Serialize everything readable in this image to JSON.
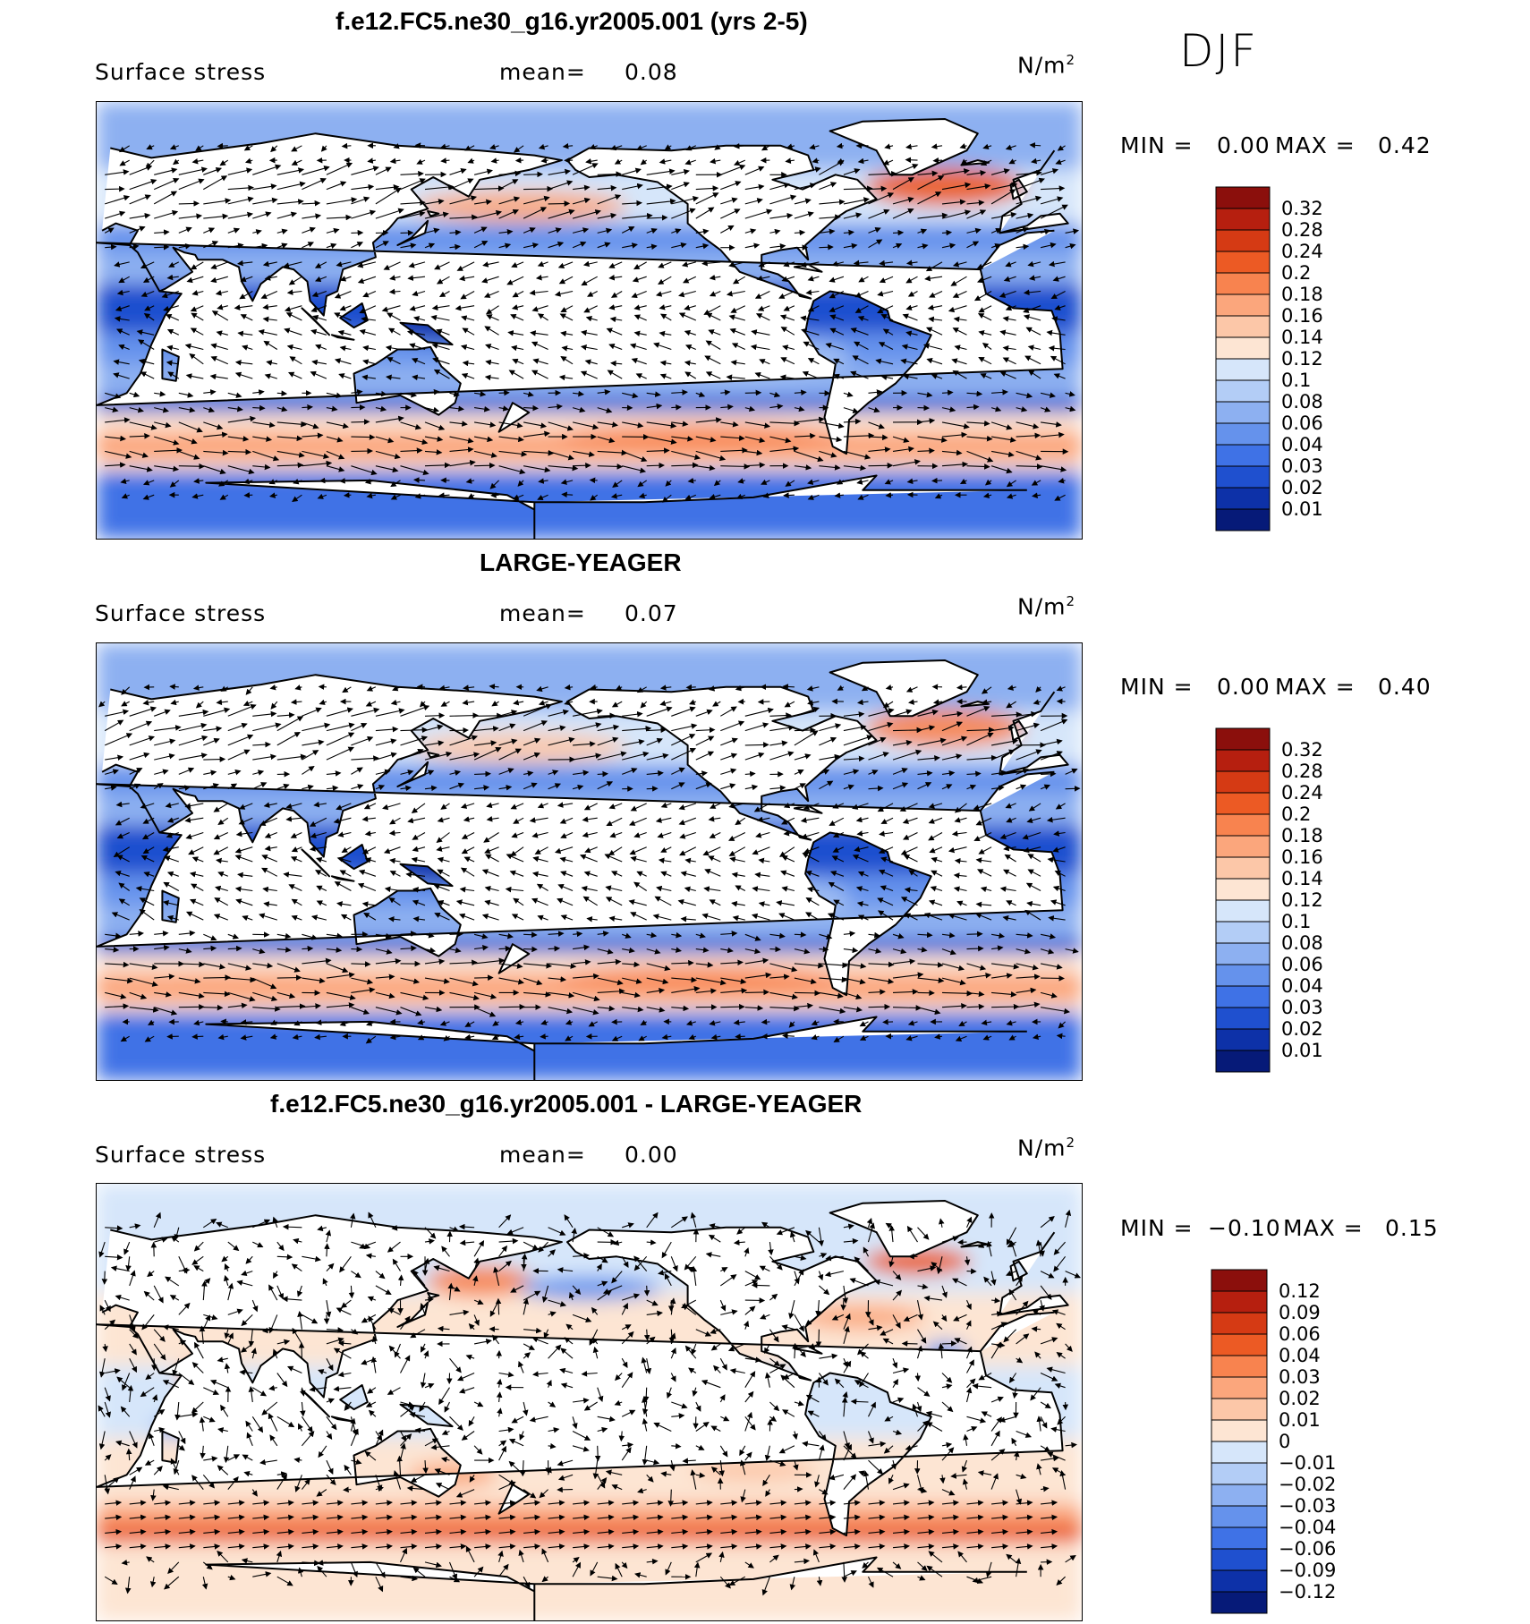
{
  "season": "DJF",
  "panels": [
    {
      "title": "f.e12.FC5.ne30_g16.yr2005.001 (yrs 2-5)",
      "variable": "Surface stress",
      "mean_label": "mean=",
      "mean_value": "0.08",
      "units_base": "N/m",
      "units_exp": "2",
      "min_label": "MIN =",
      "min_value": "0.00",
      "max_label": "MAX =",
      "max_value": "0.42",
      "colorbar_labels": [
        "0.32",
        "0.28",
        "0.24",
        "0.2",
        "0.18",
        "0.16",
        "0.14",
        "0.12",
        "0.1",
        "0.08",
        "0.06",
        "0.04",
        "0.03",
        "0.02",
        "0.01"
      ],
      "colorbar_colors": [
        "#8b0f0c",
        "#b61f0f",
        "#d53a14",
        "#ec5a24",
        "#f8834f",
        "#fba67c",
        "#fcc7a8",
        "#fde5d3",
        "#d6e6fa",
        "#b3cdf6",
        "#8db0f1",
        "#6592ec",
        "#3f72e6",
        "#1f50cf",
        "#0d31a8",
        "#061a78"
      ],
      "field_type": "magnitude"
    },
    {
      "title": "LARGE-YEAGER",
      "variable": "Surface stress",
      "mean_label": "mean=",
      "mean_value": "0.07",
      "units_base": "N/m",
      "units_exp": "2",
      "min_label": "MIN =",
      "min_value": "0.00",
      "max_label": "MAX =",
      "max_value": "0.40",
      "colorbar_labels": [
        "0.32",
        "0.28",
        "0.24",
        "0.2",
        "0.18",
        "0.16",
        "0.14",
        "0.12",
        "0.1",
        "0.08",
        "0.06",
        "0.04",
        "0.03",
        "0.02",
        "0.01"
      ],
      "colorbar_colors": [
        "#8b0f0c",
        "#b61f0f",
        "#d53a14",
        "#ec5a24",
        "#f8834f",
        "#fba67c",
        "#fcc7a8",
        "#fde5d3",
        "#d6e6fa",
        "#b3cdf6",
        "#8db0f1",
        "#6592ec",
        "#3f72e6",
        "#1f50cf",
        "#0d31a8",
        "#061a78"
      ],
      "field_type": "magnitude"
    },
    {
      "title": "f.e12.FC5.ne30_g16.yr2005.001 - LARGE-YEAGER",
      "variable": "Surface stress",
      "mean_label": "mean=",
      "mean_value": "0.00",
      "units_base": "N/m",
      "units_exp": "2",
      "min_label": "MIN =",
      "min_value": "−0.10",
      "max_label": "MAX =",
      "max_value": "0.15",
      "colorbar_labels": [
        "0.12",
        "0.09",
        "0.06",
        "0.04",
        "0.03",
        "0.02",
        "0.01",
        "0",
        "−0.01",
        "−0.02",
        "−0.03",
        "−0.04",
        "−0.06",
        "−0.09",
        "−0.12"
      ],
      "colorbar_colors": [
        "#8b0f0c",
        "#b61f0f",
        "#d53a14",
        "#ec5a24",
        "#f8834f",
        "#fba67c",
        "#fcc7a8",
        "#fde5d3",
        "#d6e6fa",
        "#b3cdf6",
        "#8db0f1",
        "#6592ec",
        "#3f72e6",
        "#1f50cf",
        "#0d31a8",
        "#061a78"
      ],
      "field_type": "difference"
    }
  ]
}
